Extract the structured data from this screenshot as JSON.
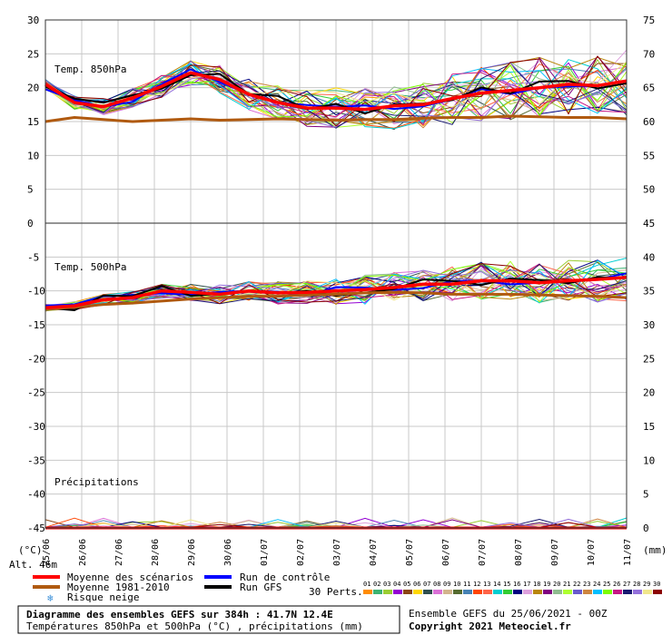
{
  "chart_data": {
    "type": "line",
    "title": "Diagramme des ensembles GEFS sur 384h : 41.7N 12.4E",
    "subtitle": "Températures 850hPa et 500hPa (°C) , précipitations (mm)",
    "run_info": "Ensemble GEFS du 25/06/2021 - 00Z",
    "copyright": "Copyright 2021 Meteociel.fr",
    "altitude": "Alt. 46m",
    "left_axis_unit": "(°C)",
    "right_axis_unit": "(mm)",
    "left_ticks": [
      "30",
      "25",
      "20",
      "15",
      "10",
      "5",
      "0",
      "-5",
      "-10",
      "-15",
      "-20",
      "-25",
      "-30",
      "-35",
      "-40",
      "-45"
    ],
    "right_ticks": [
      "75",
      "70",
      "65",
      "60",
      "55",
      "50",
      "45",
      "40",
      "35",
      "30",
      "25",
      "20",
      "15",
      "10",
      "5",
      "0"
    ],
    "x_dates": [
      "25/06",
      "26/06",
      "27/06",
      "28/06",
      "29/06",
      "30/06",
      "01/07",
      "02/07",
      "03/07",
      "04/07",
      "05/07",
      "06/07",
      "07/07",
      "08/07",
      "09/07",
      "10/07",
      "11/07"
    ],
    "panel_labels": {
      "t850": "Temp. 850hPa",
      "t500": "Temp. 500hPa",
      "precip": "Précipitations"
    },
    "legend": {
      "mean": "Moyenne des scénarios",
      "climo": "Moyenne 1981-2010",
      "snow": "Risque neige",
      "control": "Run de contrôle",
      "gfs": "Run GFS",
      "perts": "30 Perts."
    },
    "pert_labels": [
      "01",
      "02",
      "03",
      "04",
      "05",
      "06",
      "07",
      "08",
      "09",
      "10",
      "11",
      "12",
      "13",
      "14",
      "15",
      "16",
      "17",
      "18",
      "19",
      "20",
      "21",
      "22",
      "23",
      "24",
      "25",
      "26",
      "27",
      "28",
      "29",
      "30"
    ],
    "pert_colors": [
      "#ff8c00",
      "#3cb371",
      "#9acd32",
      "#9400d3",
      "#8b4513",
      "#ffd700",
      "#2f4f4f",
      "#da70d6",
      "#d2b48c",
      "#556b2f",
      "#4682b4",
      "#ff4500",
      "#ff6347",
      "#00ced1",
      "#32cd32",
      "#000080",
      "#dda0dd",
      "#b8860b",
      "#800080",
      "#8fbc8f",
      "#adff2f",
      "#6a5acd",
      "#cd853f",
      "#00bfff",
      "#7cfc00",
      "#c71585",
      "#191970",
      "#9370db",
      "#f0e68c",
      "#8b0000"
    ],
    "colors": {
      "mean": "#ff0000",
      "climo": "#b05a10",
      "control": "#0000ff",
      "gfs": "#000000"
    },
    "ylim": [
      -45,
      30
    ],
    "series": {
      "t850_mean": [
        20.5,
        17.8,
        17.2,
        18.5,
        20.2,
        22.2,
        21.2,
        19.0,
        17.8,
        17.0,
        17.0,
        16.8,
        17.3,
        17.5,
        18.4,
        19.2,
        19.6,
        20.0,
        20.5,
        20.3,
        21.0
      ],
      "t850_climo": [
        15.0,
        15.6,
        15.3,
        15.0,
        15.2,
        15.4,
        15.2,
        15.3,
        15.4,
        15.3,
        15.2,
        15.3,
        15.3,
        15.5,
        15.6,
        15.6,
        15.8,
        15.7,
        15.6,
        15.6,
        15.4
      ],
      "t500_mean": [
        -12.5,
        -12.2,
        -11.3,
        -11.0,
        -10.0,
        -10.2,
        -10.5,
        -10.0,
        -10.3,
        -10.2,
        -10.0,
        -9.8,
        -9.5,
        -9.0,
        -9.0,
        -8.5,
        -8.5,
        -8.8,
        -8.5,
        -8.3,
        -8.0
      ],
      "t500_climo": [
        -12.7,
        -12.4,
        -12.0,
        -11.8,
        -11.5,
        -11.2,
        -11.0,
        -10.8,
        -10.8,
        -10.6,
        -10.5,
        -10.3,
        -10.2,
        -10.3,
        -10.5,
        -10.5,
        -10.5,
        -10.6,
        -10.7,
        -10.8,
        -11.0
      ]
    }
  }
}
